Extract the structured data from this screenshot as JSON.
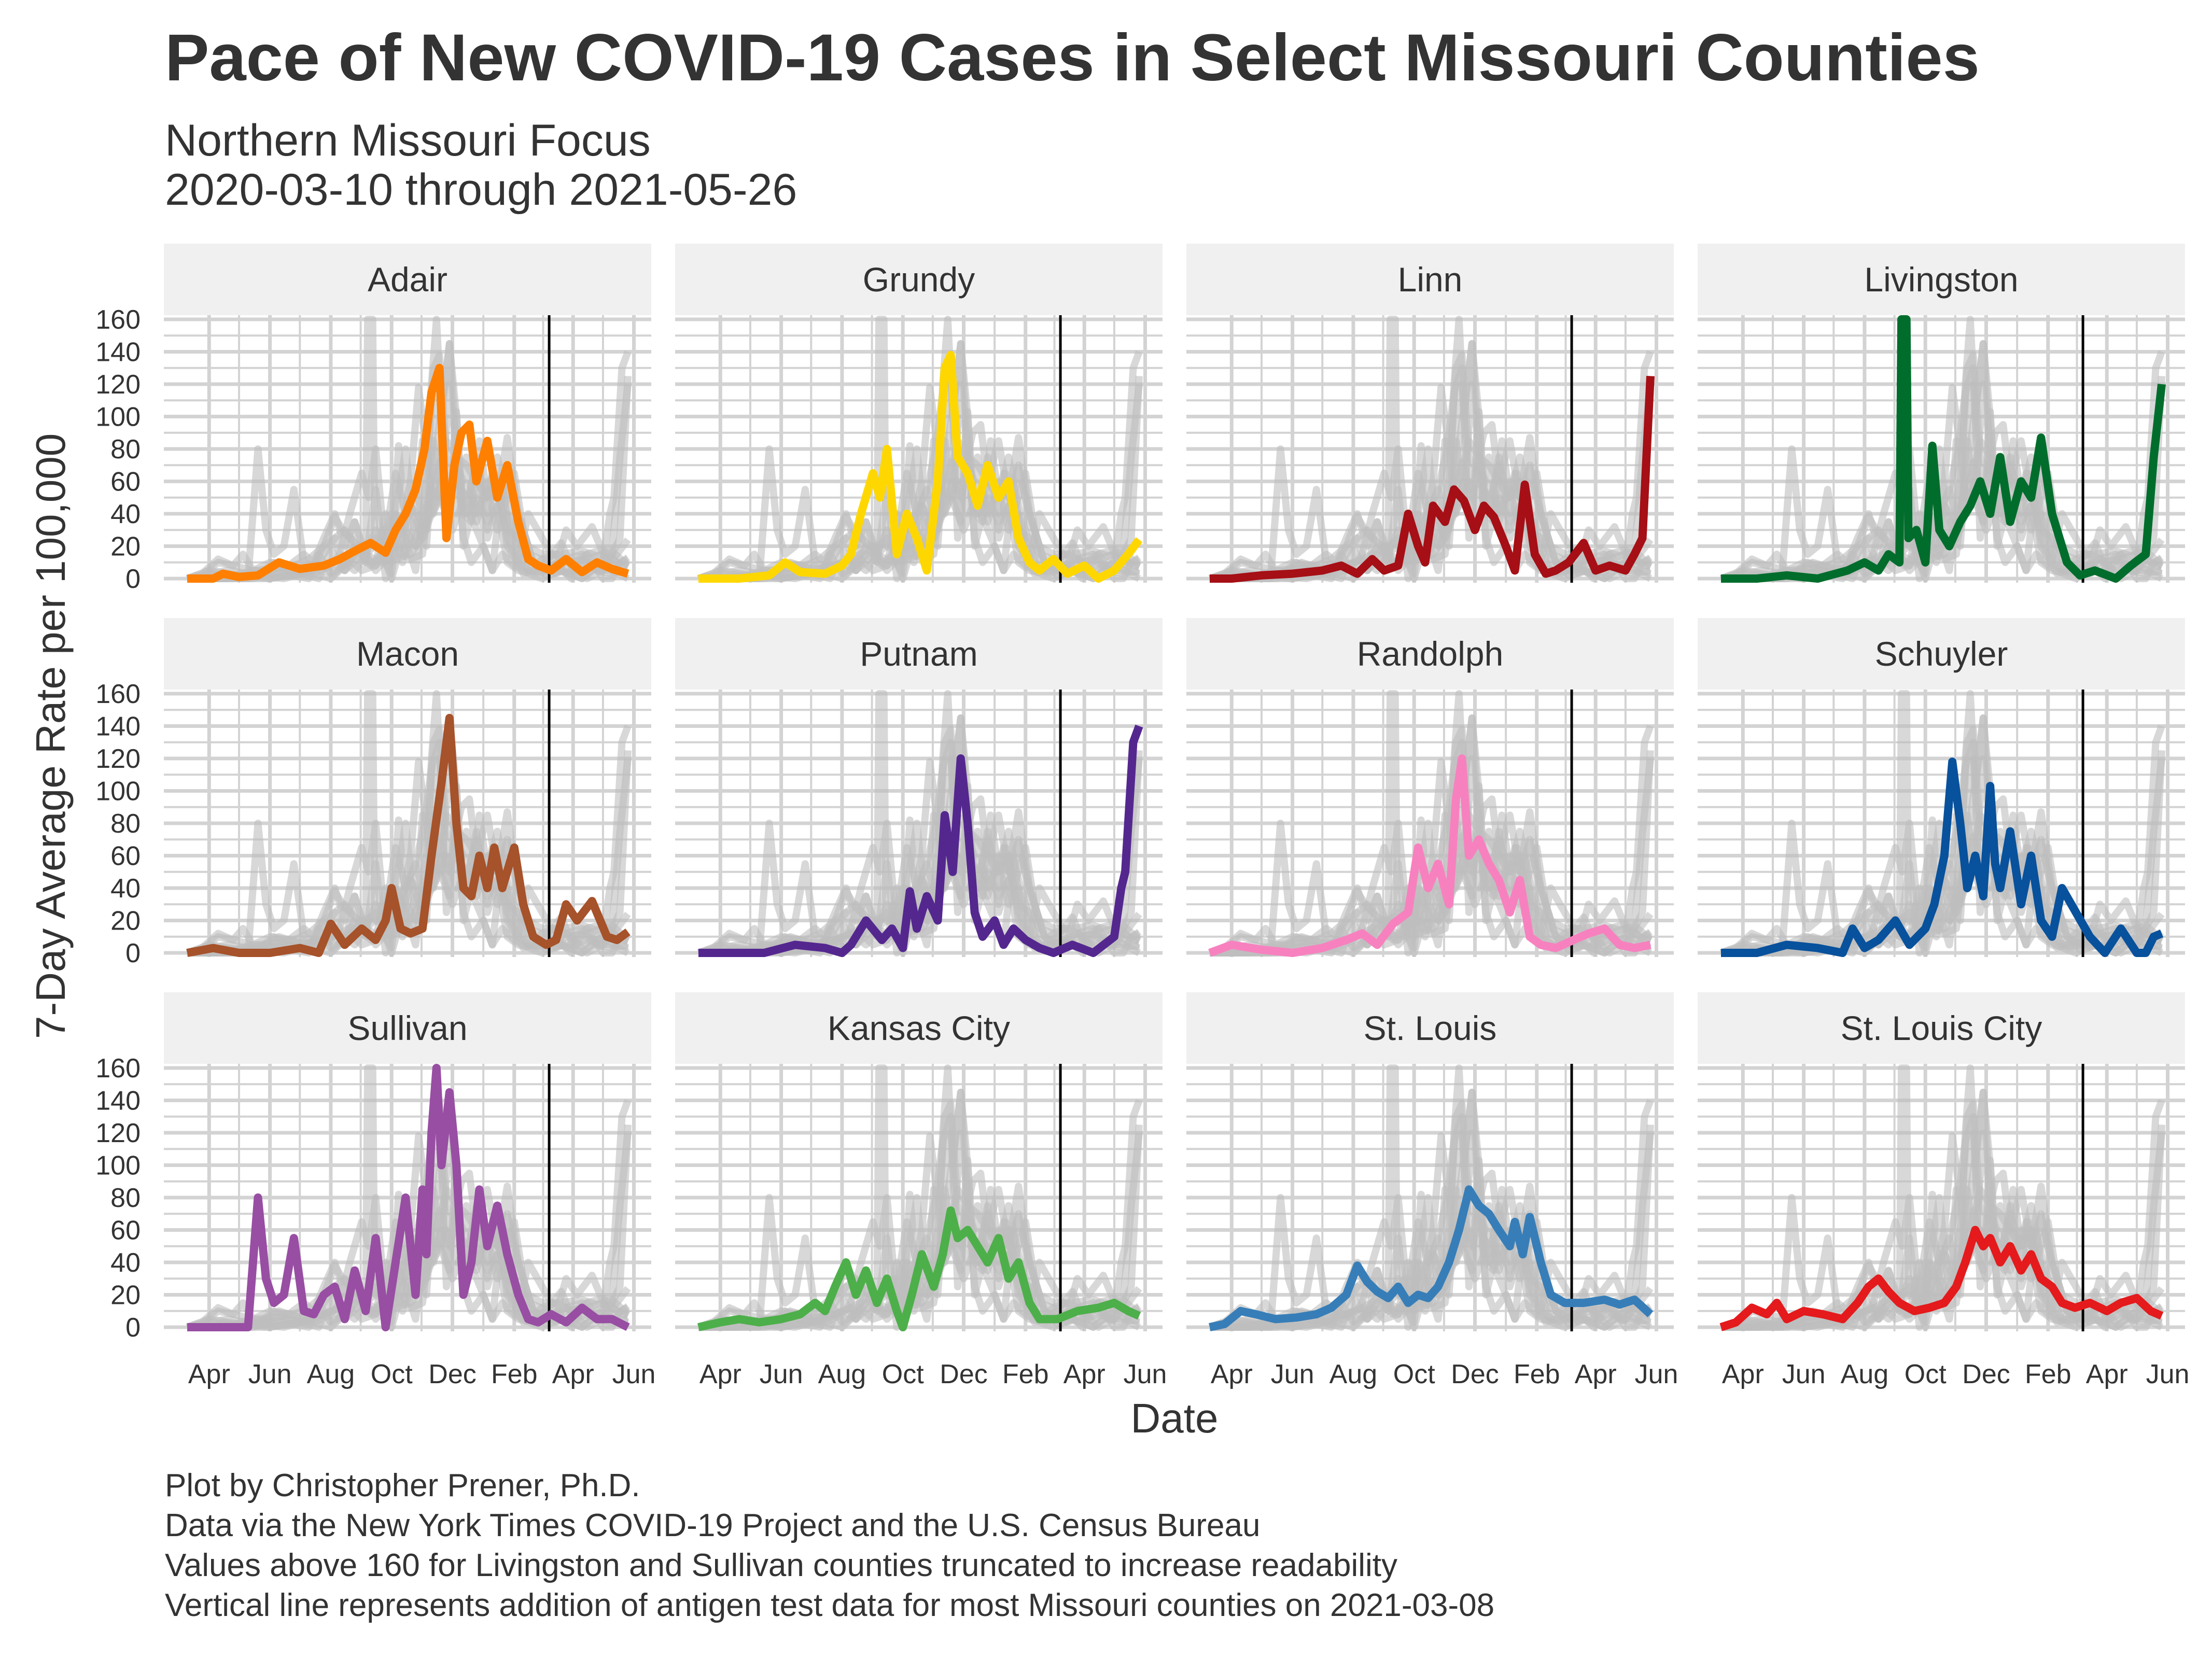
{
  "title": "Pace of New COVID-19 Cases in Select Missouri Counties",
  "subtitle_lines": [
    "Northern Missouri Focus",
    "2020-03-10 through 2021-05-26"
  ],
  "captions": [
    "Plot by Christopher Prener, Ph.D.",
    "Data via the New York Times COVID-19 Project and the U.S. Census Bureau",
    "Values above 160 for Livingston and Sullivan counties truncated to increase readability",
    "Vertical line represents addition of antigen test data for most Missouri counties on 2021-03-08"
  ],
  "colors": {
    "background_lines": "#bebebe",
    "grid": "#d3d3d3",
    "strip": "#f0f0f0",
    "text": "#333333",
    "vline": "#000000"
  },
  "chart_data": {
    "type": "line",
    "xlabel": "Date",
    "ylabel": "7-Day Average Rate per 100,000",
    "ylim": [
      0,
      160
    ],
    "y_ticks": [
      0,
      20,
      40,
      60,
      80,
      100,
      120,
      140,
      160
    ],
    "x_ticks": [
      {
        "date": "2020-04-01",
        "label": "Apr"
      },
      {
        "date": "2020-06-01",
        "label": "Jun"
      },
      {
        "date": "2020-08-01",
        "label": "Aug"
      },
      {
        "date": "2020-10-01",
        "label": "Oct"
      },
      {
        "date": "2020-12-01",
        "label": "Dec"
      },
      {
        "date": "2021-02-01",
        "label": "Feb"
      },
      {
        "date": "2021-04-01",
        "label": "Apr"
      },
      {
        "date": "2021-06-01",
        "label": "Jun"
      }
    ],
    "x_range": [
      "2020-03-10",
      "2021-05-26"
    ],
    "vline_date": "2021-03-08",
    "grid": true,
    "layout": "facet 3x4, highlighted series over all series in grey",
    "series": [
      {
        "name": "Adair",
        "color": "#ff7f00",
        "x": [
          "2020-03-10",
          "2020-04-05",
          "2020-04-15",
          "2020-05-01",
          "2020-05-20",
          "2020-06-10",
          "2020-07-01",
          "2020-07-25",
          "2020-08-10",
          "2020-08-28",
          "2020-09-10",
          "2020-09-25",
          "2020-10-05",
          "2020-10-15",
          "2020-10-25",
          "2020-11-03",
          "2020-11-10",
          "2020-11-18",
          "2020-11-25",
          "2020-12-03",
          "2020-12-10",
          "2020-12-18",
          "2020-12-25",
          "2021-01-05",
          "2021-01-15",
          "2021-01-25",
          "2021-02-05",
          "2021-02-15",
          "2021-02-25",
          "2021-03-10",
          "2021-03-25",
          "2021-04-10",
          "2021-04-25",
          "2021-05-10",
          "2021-05-26"
        ],
        "y": [
          0,
          0,
          3,
          1,
          2,
          10,
          6,
          8,
          12,
          18,
          22,
          16,
          30,
          40,
          55,
          80,
          115,
          130,
          25,
          70,
          90,
          95,
          60,
          85,
          50,
          70,
          35,
          12,
          8,
          5,
          12,
          4,
          10,
          6,
          3
        ]
      },
      {
        "name": "Grundy",
        "color": "#ffd700",
        "x": [
          "2020-03-10",
          "2020-04-20",
          "2020-05-20",
          "2020-06-05",
          "2020-06-20",
          "2020-07-15",
          "2020-08-01",
          "2020-08-10",
          "2020-08-20",
          "2020-09-01",
          "2020-09-08",
          "2020-09-15",
          "2020-09-25",
          "2020-10-05",
          "2020-10-15",
          "2020-10-25",
          "2020-11-05",
          "2020-11-12",
          "2020-11-18",
          "2020-11-25",
          "2020-12-05",
          "2020-12-15",
          "2020-12-25",
          "2021-01-05",
          "2021-01-15",
          "2021-01-25",
          "2021-02-05",
          "2021-02-15",
          "2021-03-01",
          "2021-03-15",
          "2021-04-01",
          "2021-04-15",
          "2021-05-01",
          "2021-05-15",
          "2021-05-26"
        ],
        "y": [
          0,
          0,
          2,
          10,
          4,
          3,
          8,
          15,
          40,
          65,
          50,
          80,
          15,
          40,
          25,
          5,
          60,
          130,
          138,
          75,
          65,
          45,
          70,
          50,
          60,
          25,
          10,
          5,
          12,
          3,
          8,
          0,
          5,
          15,
          24
        ]
      },
      {
        "name": "Linn",
        "color": "#a50f15",
        "x": [
          "2020-03-10",
          "2020-04-01",
          "2020-05-01",
          "2020-06-01",
          "2020-07-01",
          "2020-07-20",
          "2020-08-05",
          "2020-08-20",
          "2020-09-01",
          "2020-09-15",
          "2020-09-25",
          "2020-10-05",
          "2020-10-12",
          "2020-10-20",
          "2020-11-01",
          "2020-11-10",
          "2020-11-20",
          "2020-12-01",
          "2020-12-10",
          "2020-12-20",
          "2021-01-01",
          "2021-01-10",
          "2021-01-20",
          "2021-01-30",
          "2021-02-10",
          "2021-02-20",
          "2021-03-05",
          "2021-03-20",
          "2021-04-01",
          "2021-04-15",
          "2021-05-01",
          "2021-05-10",
          "2021-05-18",
          "2021-05-26"
        ],
        "y": [
          0,
          0,
          2,
          3,
          5,
          8,
          3,
          12,
          5,
          8,
          40,
          20,
          10,
          45,
          35,
          55,
          48,
          30,
          45,
          38,
          20,
          5,
          58,
          15,
          3,
          5,
          10,
          22,
          5,
          8,
          5,
          15,
          25,
          125
        ]
      },
      {
        "name": "Livingston",
        "color": "#006d2c",
        "x": [
          "2020-03-10",
          "2020-04-15",
          "2020-05-15",
          "2020-06-15",
          "2020-07-15",
          "2020-08-01",
          "2020-08-15",
          "2020-08-25",
          "2020-09-05",
          "2020-09-07",
          "2020-09-12",
          "2020-09-14",
          "2020-09-22",
          "2020-10-01",
          "2020-10-08",
          "2020-10-15",
          "2020-10-25",
          "2020-11-05",
          "2020-11-15",
          "2020-11-25",
          "2020-12-05",
          "2020-12-15",
          "2020-12-25",
          "2021-01-05",
          "2021-01-15",
          "2021-01-25",
          "2021-02-05",
          "2021-02-20",
          "2021-03-05",
          "2021-03-20",
          "2021-04-10",
          "2021-04-25",
          "2021-05-10",
          "2021-05-18",
          "2021-05-26"
        ],
        "y": [
          0,
          0,
          2,
          0,
          5,
          10,
          5,
          15,
          10,
          160,
          160,
          25,
          30,
          10,
          82,
          30,
          20,
          35,
          45,
          60,
          40,
          75,
          35,
          60,
          50,
          87,
          40,
          10,
          2,
          5,
          0,
          8,
          15,
          75,
          120
        ]
      },
      {
        "name": "Macon",
        "color": "#a6522a",
        "x": [
          "2020-03-10",
          "2020-04-05",
          "2020-05-01",
          "2020-06-01",
          "2020-07-01",
          "2020-07-20",
          "2020-08-01",
          "2020-08-15",
          "2020-09-01",
          "2020-09-15",
          "2020-09-25",
          "2020-10-01",
          "2020-10-10",
          "2020-10-20",
          "2020-11-01",
          "2020-11-10",
          "2020-11-20",
          "2020-11-28",
          "2020-12-05",
          "2020-12-12",
          "2020-12-20",
          "2020-12-28",
          "2021-01-05",
          "2021-01-12",
          "2021-01-20",
          "2021-02-01",
          "2021-02-10",
          "2021-02-20",
          "2021-03-05",
          "2021-03-15",
          "2021-03-25",
          "2021-04-05",
          "2021-04-20",
          "2021-05-05",
          "2021-05-15",
          "2021-05-26"
        ],
        "y": [
          0,
          3,
          0,
          0,
          3,
          0,
          18,
          5,
          15,
          8,
          20,
          40,
          15,
          12,
          15,
          60,
          105,
          145,
          80,
          40,
          35,
          60,
          40,
          65,
          40,
          65,
          30,
          10,
          5,
          8,
          30,
          20,
          32,
          10,
          8,
          13
        ]
      },
      {
        "name": "Putnam",
        "color": "#54278f",
        "x": [
          "2020-03-10",
          "2020-04-15",
          "2020-05-15",
          "2020-06-15",
          "2020-07-15",
          "2020-08-01",
          "2020-08-10",
          "2020-08-25",
          "2020-09-10",
          "2020-09-20",
          "2020-10-01",
          "2020-10-08",
          "2020-10-15",
          "2020-10-25",
          "2020-11-05",
          "2020-11-12",
          "2020-11-20",
          "2020-11-28",
          "2020-12-05",
          "2020-12-12",
          "2020-12-20",
          "2021-01-01",
          "2021-01-10",
          "2021-01-20",
          "2021-02-01",
          "2021-02-15",
          "2021-03-01",
          "2021-03-20",
          "2021-04-10",
          "2021-05-01",
          "2021-05-08",
          "2021-05-12",
          "2021-05-20",
          "2021-05-26"
        ],
        "y": [
          0,
          0,
          0,
          5,
          3,
          0,
          5,
          20,
          8,
          15,
          3,
          38,
          15,
          35,
          20,
          85,
          50,
          120,
          80,
          25,
          10,
          20,
          5,
          15,
          8,
          3,
          0,
          5,
          0,
          10,
          40,
          50,
          130,
          140
        ]
      },
      {
        "name": "Randolph",
        "color": "#f781bf",
        "x": [
          "2020-03-10",
          "2020-04-01",
          "2020-05-01",
          "2020-06-01",
          "2020-07-01",
          "2020-07-25",
          "2020-08-10",
          "2020-08-25",
          "2020-09-10",
          "2020-09-25",
          "2020-10-05",
          "2020-10-15",
          "2020-10-25",
          "2020-11-05",
          "2020-11-12",
          "2020-11-18",
          "2020-11-25",
          "2020-12-05",
          "2020-12-15",
          "2020-12-25",
          "2021-01-05",
          "2021-01-15",
          "2021-01-25",
          "2021-02-05",
          "2021-02-20",
          "2021-03-10",
          "2021-03-25",
          "2021-04-10",
          "2021-04-25",
          "2021-05-10",
          "2021-05-26"
        ],
        "y": [
          0,
          5,
          2,
          0,
          3,
          8,
          12,
          5,
          18,
          25,
          65,
          40,
          55,
          30,
          95,
          120,
          60,
          70,
          55,
          45,
          25,
          45,
          10,
          5,
          3,
          8,
          12,
          15,
          5,
          3,
          5
        ]
      },
      {
        "name": "Schuyler",
        "color": "#08519c",
        "x": [
          "2020-03-10",
          "2020-04-15",
          "2020-05-15",
          "2020-06-15",
          "2020-07-10",
          "2020-07-20",
          "2020-08-01",
          "2020-08-15",
          "2020-09-01",
          "2020-09-15",
          "2020-10-01",
          "2020-10-10",
          "2020-10-20",
          "2020-10-28",
          "2020-11-05",
          "2020-11-12",
          "2020-11-20",
          "2020-11-28",
          "2020-12-05",
          "2020-12-10",
          "2020-12-15",
          "2020-12-25",
          "2021-01-05",
          "2021-01-15",
          "2021-01-25",
          "2021-02-05",
          "2021-02-15",
          "2021-03-01",
          "2021-03-15",
          "2021-03-30",
          "2021-04-15",
          "2021-05-01",
          "2021-05-10",
          "2021-05-18",
          "2021-05-26"
        ],
        "y": [
          0,
          0,
          5,
          3,
          0,
          15,
          3,
          8,
          20,
          5,
          15,
          30,
          60,
          118,
          80,
          40,
          60,
          35,
          103,
          55,
          40,
          75,
          30,
          60,
          20,
          10,
          40,
          25,
          10,
          0,
          15,
          0,
          0,
          10,
          12
        ]
      },
      {
        "name": "Sullivan",
        "color": "#984ea3",
        "x": [
          "2020-03-10",
          "2020-04-20",
          "2020-05-10",
          "2020-05-20",
          "2020-05-28",
          "2020-06-05",
          "2020-06-15",
          "2020-06-25",
          "2020-07-05",
          "2020-07-15",
          "2020-07-25",
          "2020-08-05",
          "2020-08-15",
          "2020-08-25",
          "2020-09-05",
          "2020-09-15",
          "2020-09-25",
          "2020-10-05",
          "2020-10-15",
          "2020-10-25",
          "2020-11-01",
          "2020-11-05",
          "2020-11-10",
          "2020-11-15",
          "2020-11-20",
          "2020-11-28",
          "2020-12-05",
          "2020-12-12",
          "2020-12-20",
          "2020-12-28",
          "2021-01-05",
          "2021-01-15",
          "2021-01-25",
          "2021-02-05",
          "2021-02-15",
          "2021-02-25",
          "2021-03-10",
          "2021-03-25",
          "2021-04-10",
          "2021-04-25",
          "2021-05-10",
          "2021-05-26"
        ],
        "y": [
          0,
          0,
          0,
          80,
          30,
          15,
          20,
          55,
          10,
          8,
          20,
          25,
          5,
          35,
          10,
          55,
          0,
          40,
          80,
          20,
          85,
          45,
          120,
          160,
          100,
          145,
          100,
          20,
          40,
          85,
          50,
          75,
          45,
          20,
          5,
          3,
          8,
          3,
          12,
          5,
          5,
          0
        ]
      },
      {
        "name": "Kansas City",
        "color": "#4daf4a",
        "x": [
          "2020-03-10",
          "2020-04-01",
          "2020-04-20",
          "2020-05-10",
          "2020-06-01",
          "2020-06-20",
          "2020-07-05",
          "2020-07-15",
          "2020-07-25",
          "2020-08-05",
          "2020-08-15",
          "2020-08-25",
          "2020-09-05",
          "2020-09-15",
          "2020-09-25",
          "2020-10-01",
          "2020-10-10",
          "2020-10-20",
          "2020-11-01",
          "2020-11-10",
          "2020-11-18",
          "2020-11-25",
          "2020-12-05",
          "2020-12-15",
          "2020-12-25",
          "2021-01-05",
          "2021-01-15",
          "2021-01-25",
          "2021-02-05",
          "2021-02-15",
          "2021-03-05",
          "2021-03-25",
          "2021-04-15",
          "2021-05-01",
          "2021-05-15",
          "2021-05-26"
        ],
        "y": [
          0,
          3,
          5,
          3,
          5,
          8,
          15,
          10,
          25,
          40,
          20,
          35,
          15,
          30,
          10,
          0,
          20,
          45,
          25,
          45,
          72,
          55,
          60,
          50,
          40,
          55,
          30,
          40,
          15,
          5,
          5,
          10,
          12,
          15,
          10,
          7
        ]
      },
      {
        "name": "St. Louis",
        "color": "#377eb8",
        "x": [
          "2020-03-10",
          "2020-03-25",
          "2020-04-10",
          "2020-04-25",
          "2020-05-15",
          "2020-06-05",
          "2020-06-25",
          "2020-07-10",
          "2020-07-25",
          "2020-08-05",
          "2020-08-15",
          "2020-08-25",
          "2020-09-05",
          "2020-09-15",
          "2020-09-25",
          "2020-10-05",
          "2020-10-15",
          "2020-10-25",
          "2020-11-05",
          "2020-11-15",
          "2020-11-25",
          "2020-12-05",
          "2020-12-15",
          "2020-12-25",
          "2021-01-05",
          "2021-01-10",
          "2021-01-18",
          "2021-01-25",
          "2021-02-05",
          "2021-02-15",
          "2021-03-01",
          "2021-03-20",
          "2021-04-10",
          "2021-04-25",
          "2021-05-10",
          "2021-05-26"
        ],
        "y": [
          0,
          2,
          10,
          8,
          5,
          6,
          8,
          12,
          20,
          38,
          28,
          22,
          18,
          25,
          15,
          20,
          18,
          25,
          40,
          60,
          85,
          75,
          70,
          60,
          50,
          65,
          45,
          68,
          40,
          20,
          15,
          15,
          17,
          14,
          17,
          8
        ]
      },
      {
        "name": "St. Louis City",
        "color": "#e41a1c",
        "x": [
          "2020-03-10",
          "2020-03-25",
          "2020-04-10",
          "2020-04-25",
          "2020-05-05",
          "2020-05-15",
          "2020-06-01",
          "2020-06-20",
          "2020-07-10",
          "2020-07-25",
          "2020-08-05",
          "2020-08-15",
          "2020-08-25",
          "2020-09-05",
          "2020-09-20",
          "2020-10-05",
          "2020-10-20",
          "2020-11-01",
          "2020-11-10",
          "2020-11-20",
          "2020-11-28",
          "2020-12-05",
          "2020-12-15",
          "2020-12-25",
          "2021-01-05",
          "2021-01-15",
          "2021-01-25",
          "2021-02-05",
          "2021-02-15",
          "2021-02-28",
          "2021-03-15",
          "2021-04-01",
          "2021-04-15",
          "2021-05-01",
          "2021-05-15",
          "2021-05-26"
        ],
        "y": [
          0,
          3,
          12,
          8,
          15,
          5,
          10,
          8,
          5,
          15,
          25,
          30,
          22,
          15,
          10,
          12,
          15,
          25,
          40,
          60,
          50,
          55,
          40,
          50,
          35,
          45,
          30,
          25,
          15,
          12,
          15,
          10,
          15,
          18,
          10,
          7
        ]
      }
    ]
  }
}
